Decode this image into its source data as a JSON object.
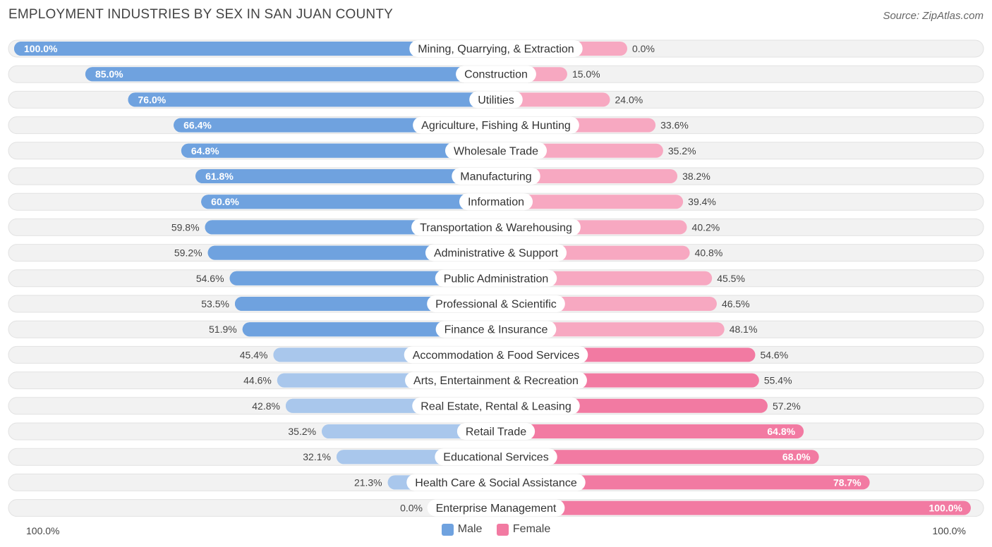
{
  "title": "EMPLOYMENT INDUSTRIES BY SEX IN SAN JUAN COUNTY",
  "source": "Source: ZipAtlas.com",
  "legend": {
    "male": "Male",
    "female": "Female"
  },
  "axis": {
    "left_label": "100.0%",
    "right_label": "100.0%"
  },
  "colors": {
    "male": "#6fa2df",
    "male_light": "#a9c7ec",
    "female": "#f27aa2",
    "female_light": "#f7a8c1",
    "track": "#efefef"
  },
  "chart_data": {
    "type": "bar",
    "orientation": "horizontal-diverging",
    "title": "EMPLOYMENT INDUSTRIES BY SEX IN SAN JUAN COUNTY",
    "xlim": [
      -100,
      100
    ],
    "categories": [
      "Mining, Quarrying, & Extraction",
      "Construction",
      "Utilities",
      "Agriculture, Fishing & Hunting",
      "Wholesale Trade",
      "Manufacturing",
      "Information",
      "Transportation & Warehousing",
      "Administrative & Support",
      "Public Administration",
      "Professional & Scientific",
      "Finance & Insurance",
      "Accommodation & Food Services",
      "Arts, Entertainment & Recreation",
      "Real Estate, Rental & Leasing",
      "Retail Trade",
      "Educational Services",
      "Health Care & Social Assistance",
      "Enterprise Management"
    ],
    "series": [
      {
        "name": "Male",
        "values": [
          100.0,
          85.0,
          76.0,
          66.4,
          64.8,
          61.8,
          60.6,
          59.8,
          59.2,
          54.6,
          53.5,
          51.9,
          45.4,
          44.6,
          42.8,
          35.2,
          32.1,
          21.3,
          0.0
        ],
        "labels": [
          "100.0%",
          "85.0%",
          "76.0%",
          "66.4%",
          "64.8%",
          "61.8%",
          "60.6%",
          "59.8%",
          "59.2%",
          "54.6%",
          "53.5%",
          "51.9%",
          "45.4%",
          "44.6%",
          "42.8%",
          "35.2%",
          "32.1%",
          "21.3%",
          "0.0%"
        ]
      },
      {
        "name": "Female",
        "values": [
          0.0,
          15.0,
          24.0,
          33.6,
          35.2,
          38.2,
          39.4,
          40.2,
          40.8,
          45.5,
          46.5,
          48.1,
          54.6,
          55.4,
          57.2,
          64.8,
          68.0,
          78.7,
          100.0
        ],
        "labels": [
          "0.0%",
          "15.0%",
          "24.0%",
          "33.6%",
          "35.2%",
          "38.2%",
          "39.4%",
          "40.2%",
          "40.8%",
          "45.5%",
          "46.5%",
          "48.1%",
          "54.6%",
          "55.4%",
          "57.2%",
          "64.8%",
          "68.0%",
          "78.7%",
          "100.0%"
        ]
      }
    ]
  }
}
